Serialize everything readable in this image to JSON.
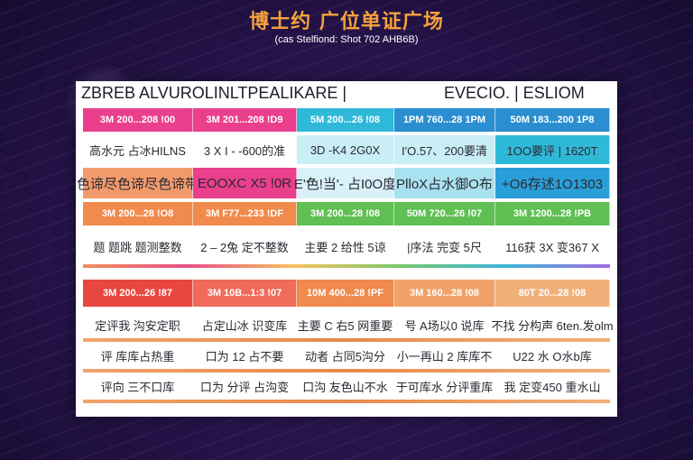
{
  "title": "博士约 广位单证广场",
  "subtitle": "(cas Stelfiond: Shot 702 AHB6B)",
  "card": {
    "header_left": "ZBREB  ALVUROLINLTPEALIKARE  |",
    "header_right": "EVECIO. | ESLIOM"
  },
  "colors": {
    "pink": "#ea3f8c",
    "cyan": "#2fb9d8",
    "blue": "#2a8ed0",
    "orange": "#f08a4d",
    "green": "#5fbf53",
    "red": "#e8463f"
  },
  "table_top": {
    "header_row": [
      "3M  200...208  !00",
      "3M  201...208  !D9",
      "5M  200...26  !08",
      "1PM  760...28  1PM",
      "50M  183...200  1P8"
    ],
    "rows": [
      [
        "高水元 占冰HILNS",
        "3 X I - -600的准",
        "3D  -K4  2G0X",
        "I'O.57、200要清",
        "1OO要评 | 1620T"
      ],
      [
        "色谛尽色谛尽色谛带",
        "EOOXC  X5  !0R",
        "E'色!当'- 占I0O度",
        "PlloX占水御O布",
        "+O6存述1O1303"
      ],
      [
        "3M  200...28  !O8",
        "3M  F77...233  !DF",
        "3M  200...28  !08",
        "50M  720...26  !07",
        "3M  1200...28  !PB"
      ],
      [
        "题  题跳  题测整数",
        "2 – 2兔  定不整数",
        "主要  2  给性  5谅",
        "|序法  完变  5尺",
        "116获 3X  变367 X"
      ]
    ]
  },
  "table_bottom": {
    "header_row": [
      "3M  200...26  !87",
      "3M  10B...1:3 !07",
      "10M  400...28  !PF",
      "3M  160...28  !08",
      "80T  20...28  !08"
    ],
    "rows": [
      [
        "定评我  沟安定职",
        "占定山冰  识变库",
        "主要  C  右5  网重要",
        "号  A场以0  说库",
        "不找  分构声  6ten.发olm"
      ],
      [
        "评  库库占热重",
        "口为  12  占不要",
        "动者  占同5沟分",
        "小一再山  2  库库不",
        "U22  水  O水b库"
      ],
      [
        "评向  三不口库",
        "口为  分评  占沟变",
        "口沟  友色山不水",
        "于可库水  分评重库",
        "我  定变450  重水山"
      ]
    ]
  }
}
